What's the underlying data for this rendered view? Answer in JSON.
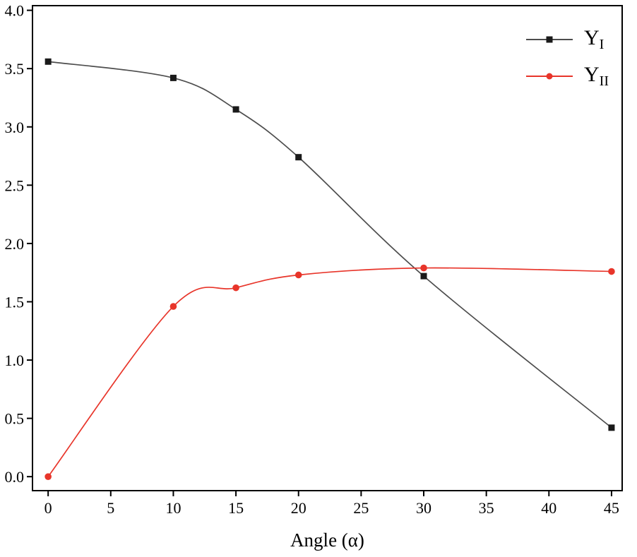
{
  "chart_data": {
    "type": "line",
    "title": "",
    "xlabel": "Angle (α)",
    "ylabel": "",
    "xlim": [
      -1.25,
      45.85
    ],
    "ylim": [
      -0.12,
      4.04
    ],
    "xticks": [
      "0",
      "5",
      "10",
      "15",
      "20",
      "25",
      "30",
      "35",
      "40",
      "45"
    ],
    "yticks": [
      "0.0",
      "0.5",
      "1.0",
      "1.5",
      "2.0",
      "2.5",
      "3.0",
      "3.5",
      "4.0"
    ],
    "x": [
      0,
      10,
      15,
      20,
      30,
      45
    ],
    "series": [
      {
        "label_main": "Y",
        "label_sub": "I",
        "color": "#4d4d4d",
        "marker": "square",
        "marker_color": "#1a1a1a",
        "values": [
          3.56,
          3.42,
          3.15,
          2.74,
          1.72,
          0.42
        ]
      },
      {
        "label_main": "Y",
        "label_sub": "II",
        "color": "#e8352a",
        "marker": "circle",
        "marker_color": "#e8352a",
        "values": [
          0.0,
          1.46,
          1.62,
          1.73,
          1.79,
          1.76
        ]
      }
    ],
    "legend_position": "top-right",
    "grid": false,
    "axis_color": "#000000",
    "background": "#ffffff"
  }
}
